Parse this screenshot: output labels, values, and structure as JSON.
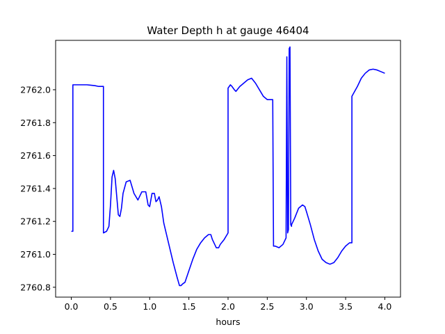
{
  "chart_data": {
    "type": "line",
    "title": "Water Depth h at gauge 46404",
    "xlabel": "hours",
    "ylabel": "",
    "xlim": [
      -0.2,
      4.2
    ],
    "ylim": [
      2760.74,
      2762.3
    ],
    "xticks": [
      0.0,
      0.5,
      1.0,
      1.5,
      2.0,
      2.5,
      3.0,
      3.5,
      4.0
    ],
    "xtick_labels": [
      "0.0",
      "0.5",
      "1.0",
      "1.5",
      "2.0",
      "2.5",
      "3.0",
      "3.5",
      "4.0"
    ],
    "yticks": [
      2760.8,
      2761.0,
      2761.2,
      2761.4,
      2761.6,
      2761.8,
      2762.0
    ],
    "ytick_labels": [
      "2760.8",
      "2761.0",
      "2761.2",
      "2761.4",
      "2761.6",
      "2761.8",
      "2762.0"
    ],
    "grid": false,
    "series": [
      {
        "color": "#0000ff",
        "x": [
          0.0,
          0.02,
          0.02,
          0.1,
          0.2,
          0.3,
          0.35,
          0.4,
          0.41,
          0.41,
          0.45,
          0.48,
          0.5,
          0.52,
          0.54,
          0.56,
          0.58,
          0.6,
          0.62,
          0.64,
          0.66,
          0.7,
          0.75,
          0.8,
          0.85,
          0.9,
          0.95,
          0.98,
          1.0,
          1.03,
          1.06,
          1.08,
          1.1,
          1.12,
          1.15,
          1.18,
          1.2,
          1.25,
          1.3,
          1.35,
          1.38,
          1.4,
          1.42,
          1.45,
          1.5,
          1.55,
          1.6,
          1.65,
          1.7,
          1.75,
          1.78,
          1.8,
          1.85,
          1.88,
          1.9,
          1.95,
          2.0,
          2.0,
          2.03,
          2.05,
          2.08,
          2.1,
          2.15,
          2.2,
          2.25,
          2.3,
          2.35,
          2.4,
          2.45,
          2.5,
          2.57,
          2.58,
          2.6,
          2.65,
          2.7,
          2.74,
          2.75,
          2.75,
          2.76,
          2.77,
          2.78,
          2.79,
          2.8,
          2.81,
          2.81,
          2.85,
          2.9,
          2.95,
          2.98,
          3.0,
          3.05,
          3.1,
          3.15,
          3.2,
          3.25,
          3.3,
          3.35,
          3.4,
          3.45,
          3.5,
          3.55,
          3.58,
          3.58,
          3.65,
          3.7,
          3.75,
          3.8,
          3.85,
          3.9,
          3.95,
          4.0
        ],
        "y": [
          2761.14,
          2761.14,
          2762.03,
          2762.03,
          2762.03,
          2762.025,
          2762.02,
          2762.02,
          2762.02,
          2761.13,
          2761.14,
          2761.17,
          2761.3,
          2761.47,
          2761.51,
          2761.46,
          2761.35,
          2761.24,
          2761.23,
          2761.28,
          2761.37,
          2761.44,
          2761.45,
          2761.37,
          2761.33,
          2761.38,
          2761.38,
          2761.3,
          2761.29,
          2761.37,
          2761.37,
          2761.32,
          2761.33,
          2761.35,
          2761.29,
          2761.19,
          2761.15,
          2761.05,
          2760.95,
          2760.86,
          2760.81,
          2760.81,
          2760.82,
          2760.83,
          2760.9,
          2760.97,
          2761.03,
          2761.07,
          2761.1,
          2761.12,
          2761.12,
          2761.09,
          2761.04,
          2761.04,
          2761.06,
          2761.09,
          2761.13,
          2762.01,
          2762.03,
          2762.02,
          2762.0,
          2761.99,
          2762.02,
          2762.04,
          2762.06,
          2762.07,
          2762.04,
          2762.0,
          2761.96,
          2761.94,
          2761.94,
          2761.05,
          2761.05,
          2761.04,
          2761.06,
          2761.1,
          2762.19,
          2762.2,
          2761.13,
          2761.15,
          2762.25,
          2762.26,
          2761.18,
          2761.17,
          2761.18,
          2761.22,
          2761.28,
          2761.3,
          2761.29,
          2761.26,
          2761.18,
          2761.09,
          2761.02,
          2760.97,
          2760.95,
          2760.94,
          2760.95,
          2760.98,
          2761.02,
          2761.05,
          2761.07,
          2761.07,
          2761.96,
          2762.02,
          2762.07,
          2762.1,
          2762.12,
          2762.125,
          2762.12,
          2762.11,
          2762.1
        ]
      }
    ]
  }
}
